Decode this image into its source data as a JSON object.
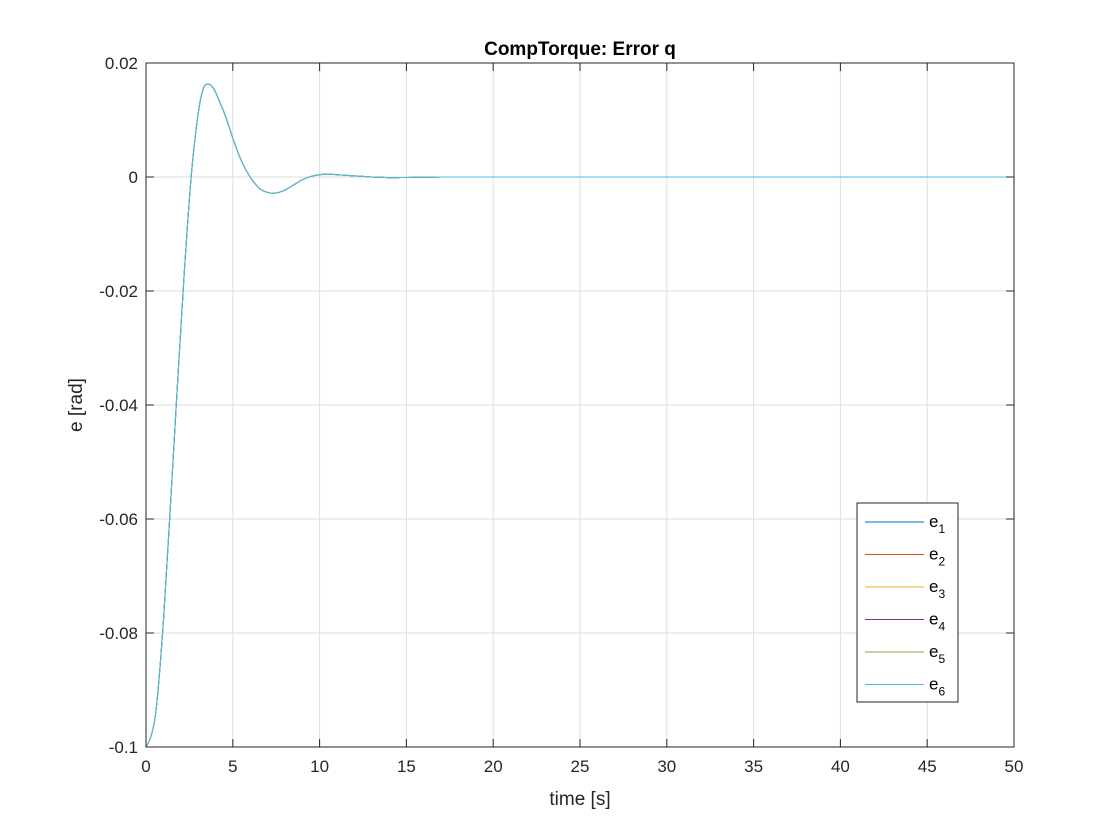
{
  "chart_data": {
    "type": "line",
    "title": "CompTorque: Error q",
    "xlabel": "time [s]",
    "ylabel": "e [rad]",
    "xlim": [
      0,
      50
    ],
    "ylim": [
      -0.1,
      0.02
    ],
    "grid": true,
    "legend_position": "bottom-right (inside axes)",
    "x_ticks": [
      0,
      5,
      10,
      15,
      20,
      25,
      30,
      35,
      40,
      45,
      50
    ],
    "x_tick_labels": [
      "0",
      "5",
      "10",
      "15",
      "20",
      "25",
      "30",
      "35",
      "40",
      "45",
      "50"
    ],
    "y_ticks": [
      0.02,
      0,
      -0.02,
      -0.04,
      -0.06,
      -0.08,
      -0.1
    ],
    "y_tick_labels": [
      "0.02",
      "0",
      "-0.02",
      "-0.04",
      "-0.06",
      "-0.08",
      "-0.1"
    ],
    "x": [
      0,
      0.3,
      0.6,
      1.0,
      1.4,
      1.8,
      2.2,
      2.6,
      3.0,
      3.3,
      3.6,
      3.9,
      4.2,
      4.6,
      5.0,
      5.5,
      6.0,
      6.5,
      7.0,
      7.5,
      8.0,
      8.5,
      9.0,
      9.5,
      10.0,
      10.5,
      11.0,
      11.5,
      12.0,
      12.5,
      13.0,
      13.5,
      14.0,
      14.5,
      15.0,
      16.0,
      17.0,
      18.0,
      19.0,
      20.0,
      25.0,
      30.0,
      35.0,
      40.0,
      45.0,
      50.0
    ],
    "series": [
      {
        "name": "e_1",
        "legend_base": "e",
        "legend_sub": "1",
        "color": "#0072BD",
        "values": [
          -0.1,
          -0.098,
          -0.093,
          -0.078,
          -0.058,
          -0.037,
          -0.017,
          0.0,
          0.011,
          0.0155,
          0.0163,
          0.0155,
          0.0135,
          0.0105,
          0.0068,
          0.0028,
          0.0,
          -0.0019,
          -0.0027,
          -0.0028,
          -0.0023,
          -0.0014,
          -0.0005,
          0.0001,
          0.0004,
          0.0005,
          0.0004,
          0.0003,
          0.0002,
          0.0001,
          0.0,
          -5e-05,
          -0.0001,
          -0.0001,
          -8e-05,
          -4e-05,
          0.0,
          0.0,
          0.0,
          0.0,
          0.0,
          0.0,
          0.0,
          0.0,
          0.0,
          0.0
        ]
      },
      {
        "name": "e_2",
        "legend_base": "e",
        "legend_sub": "2",
        "color": "#D95319",
        "values": [
          -0.1,
          -0.098,
          -0.093,
          -0.078,
          -0.058,
          -0.037,
          -0.017,
          0.0,
          0.011,
          0.0155,
          0.0163,
          0.0155,
          0.0135,
          0.0105,
          0.0068,
          0.0028,
          0.0,
          -0.0019,
          -0.0027,
          -0.0028,
          -0.0023,
          -0.0014,
          -0.0005,
          0.0001,
          0.0004,
          0.0005,
          0.0004,
          0.0003,
          0.0002,
          0.0001,
          0.0,
          -5e-05,
          -0.0001,
          -0.0001,
          -8e-05,
          -4e-05,
          0.0,
          0.0,
          0.0,
          0.0,
          0.0,
          0.0,
          0.0,
          0.0,
          0.0,
          0.0
        ]
      },
      {
        "name": "e_3",
        "legend_base": "e",
        "legend_sub": "3",
        "color": "#EDB120",
        "values": [
          -0.1,
          -0.098,
          -0.093,
          -0.078,
          -0.058,
          -0.037,
          -0.017,
          0.0,
          0.011,
          0.0155,
          0.0163,
          0.0155,
          0.0135,
          0.0105,
          0.0068,
          0.0028,
          0.0,
          -0.0019,
          -0.0027,
          -0.0028,
          -0.0023,
          -0.0014,
          -0.0005,
          0.0001,
          0.0004,
          0.0005,
          0.0004,
          0.0003,
          0.0002,
          0.0001,
          0.0,
          -5e-05,
          -0.0001,
          -0.0001,
          -8e-05,
          -4e-05,
          0.0,
          0.0,
          0.0,
          0.0,
          0.0,
          0.0,
          0.0,
          0.0,
          0.0,
          0.0
        ]
      },
      {
        "name": "e_4",
        "legend_base": "e",
        "legend_sub": "4",
        "color": "#7E2F8E",
        "values": [
          -0.1,
          -0.098,
          -0.093,
          -0.078,
          -0.058,
          -0.037,
          -0.017,
          0.0,
          0.011,
          0.0155,
          0.0163,
          0.0155,
          0.0135,
          0.0105,
          0.0068,
          0.0028,
          0.0,
          -0.0019,
          -0.0027,
          -0.0028,
          -0.0023,
          -0.0014,
          -0.0005,
          0.0001,
          0.0004,
          0.0005,
          0.0004,
          0.0003,
          0.0002,
          0.0001,
          0.0,
          -5e-05,
          -0.0001,
          -0.0001,
          -8e-05,
          -4e-05,
          0.0,
          0.0,
          0.0,
          0.0,
          0.0,
          0.0,
          0.0,
          0.0,
          0.0,
          0.0
        ]
      },
      {
        "name": "e_5",
        "legend_base": "e",
        "legend_sub": "5",
        "color": "#77AC30",
        "values": [
          -0.1,
          -0.098,
          -0.093,
          -0.078,
          -0.058,
          -0.037,
          -0.017,
          0.0,
          0.011,
          0.0155,
          0.0163,
          0.0155,
          0.0135,
          0.0105,
          0.0068,
          0.0028,
          0.0,
          -0.0019,
          -0.0027,
          -0.0028,
          -0.0023,
          -0.0014,
          -0.0005,
          0.0001,
          0.0004,
          0.0005,
          0.0004,
          0.0003,
          0.0002,
          0.0001,
          0.0,
          -5e-05,
          -0.0001,
          -0.0001,
          -8e-05,
          -4e-05,
          0.0,
          0.0,
          0.0,
          0.0,
          0.0,
          0.0,
          0.0,
          0.0,
          0.0,
          0.0
        ]
      },
      {
        "name": "e_6",
        "legend_base": "e",
        "legend_sub": "6",
        "color": "#4DBEEE",
        "values": [
          -0.1,
          -0.098,
          -0.093,
          -0.078,
          -0.058,
          -0.037,
          -0.017,
          0.0,
          0.011,
          0.0155,
          0.0163,
          0.0155,
          0.0135,
          0.0105,
          0.0068,
          0.0028,
          0.0,
          -0.0019,
          -0.0027,
          -0.0028,
          -0.0023,
          -0.0014,
          -0.0005,
          0.0001,
          0.0004,
          0.0005,
          0.0004,
          0.0003,
          0.0002,
          0.0001,
          0.0,
          -5e-05,
          -0.0001,
          -0.0001,
          -8e-05,
          -4e-05,
          0.0,
          0.0,
          0.0,
          0.0,
          0.0,
          0.0,
          0.0,
          0.0,
          0.0,
          0.0
        ]
      }
    ]
  }
}
